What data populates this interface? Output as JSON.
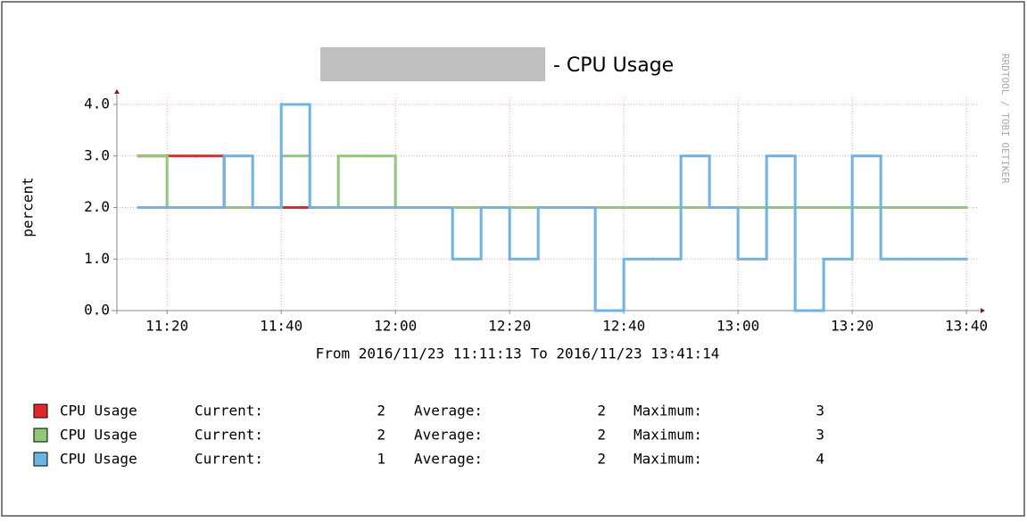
{
  "chart_data": {
    "type": "line",
    "step": true,
    "title": "- CPU Usage",
    "subtitle": "From 2016/11/23 11:11:13 To 2016/11/23 13:41:14",
    "y_label": "percent",
    "watermark": "RRDTOOL / TOBI OETIKER",
    "x": [
      "11:20",
      "11:25",
      "11:30",
      "11:35",
      "11:40",
      "11:45",
      "11:50",
      "11:55",
      "12:00",
      "12:05",
      "12:10",
      "12:15",
      "12:20",
      "12:25",
      "12:30",
      "12:35",
      "12:40",
      "12:45",
      "12:50",
      "12:55",
      "13:00",
      "13:05",
      "13:10",
      "13:15",
      "13:20",
      "13:25",
      "13:30",
      "13:35",
      "13:40"
    ],
    "xlim": [
      "11:11:13",
      "13:41:14"
    ],
    "xticks": [
      "11:20",
      "11:40",
      "12:00",
      "12:20",
      "12:40",
      "13:00",
      "13:20",
      "13:40"
    ],
    "ylim": [
      0,
      4
    ],
    "yticks": [
      {
        "value": 0,
        "label": "0.0"
      },
      {
        "value": 1,
        "label": "1.0"
      },
      {
        "value": 2,
        "label": "2.0"
      },
      {
        "value": 3,
        "label": "3.0"
      },
      {
        "value": 4,
        "label": "4.0"
      }
    ],
    "grid": true,
    "legend_labels": [
      "Current:",
      "Average:",
      "Maximum:"
    ],
    "series": [
      {
        "name": "CPU Usage",
        "color": "#e0282a",
        "current": 2,
        "average": 2,
        "maximum": 3,
        "values": [
          3,
          3,
          3,
          2,
          2,
          2,
          2,
          2,
          2,
          2,
          2,
          2,
          2,
          2,
          2,
          2,
          2,
          2,
          2,
          2,
          2,
          2,
          2,
          2,
          2,
          2,
          2,
          2,
          2
        ]
      },
      {
        "name": "CPU Usage",
        "color": "#90c878",
        "current": 2,
        "average": 2,
        "maximum": 3,
        "values": [
          3,
          2,
          2,
          2,
          2,
          3,
          2,
          3,
          3,
          2,
          2,
          2,
          2,
          2,
          2,
          2,
          2,
          2,
          2,
          2,
          2,
          2,
          2,
          2,
          2,
          2,
          2,
          2,
          2
        ]
      },
      {
        "name": "CPU Usage",
        "color": "#6cb4e4",
        "current": 1,
        "average": 2,
        "maximum": 4,
        "values": [
          2,
          2,
          2,
          3,
          2,
          4,
          2,
          2,
          2,
          2,
          2,
          1,
          2,
          1,
          2,
          2,
          0,
          1,
          1,
          3,
          2,
          1,
          3,
          0,
          1,
          3,
          1,
          1,
          1
        ]
      }
    ]
  }
}
